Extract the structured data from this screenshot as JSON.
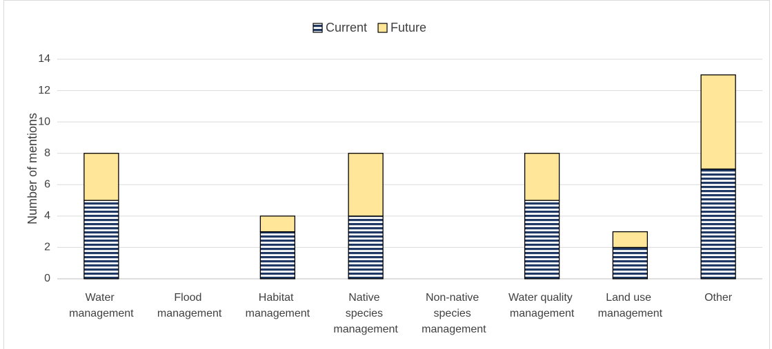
{
  "chart_data": {
    "type": "stacked_bar",
    "y_label": "Number of mentions",
    "categories": [
      "Water management",
      "Flood management",
      "Habitat management",
      "Native species management",
      "Non-native species management",
      "Water quality management",
      "Land use management",
      "Other"
    ],
    "series": [
      {
        "name": "Current",
        "color": "#1f3864",
        "pattern": "horizontal-stripes",
        "values": [
          5,
          0,
          3,
          4,
          0,
          5,
          2,
          7
        ]
      },
      {
        "name": "Future",
        "color": "#ffe699",
        "values": [
          3,
          0,
          1,
          4,
          0,
          3,
          1,
          6
        ]
      }
    ],
    "ylim": [
      0,
      14
    ],
    "yticks": [
      0,
      2,
      4,
      6,
      8,
      10,
      12,
      14
    ],
    "grid": true,
    "legend": "top"
  }
}
